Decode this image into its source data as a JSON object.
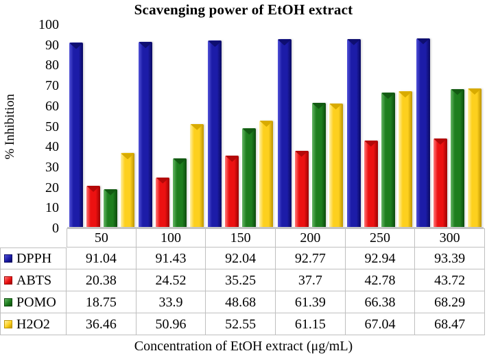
{
  "chart_data": {
    "type": "bar",
    "title": "Scavenging power of EtOH extract",
    "xlabel": "Concentration of EtOH extract (μg/mL)",
    "ylabel": "% Inhibition",
    "ylim": [
      0,
      100
    ],
    "yticks": [
      0,
      10,
      20,
      30,
      40,
      50,
      60,
      70,
      80,
      90,
      100
    ],
    "grid": false,
    "legend_position": "table-left",
    "categories": [
      "50",
      "100",
      "150",
      "200",
      "250",
      "300"
    ],
    "series": [
      {
        "name": "DPPH",
        "values": [
          91.04,
          91.43,
          92.04,
          92.77,
          92.94,
          93.39
        ],
        "palette": {
          "fill": "#1c1ca8",
          "highlight": "#5252d8",
          "shade": "#0a0a62",
          "cap": "#0e0e70"
        }
      },
      {
        "name": "ABTS",
        "values": [
          20.38,
          24.52,
          35.25,
          37.7,
          42.78,
          43.72
        ],
        "palette": {
          "fill": "#ec1111",
          "highlight": "#ff7a7a",
          "shade": "#9c0202",
          "cap": "#b40808"
        }
      },
      {
        "name": "POMO",
        "values": [
          18.75,
          33.9,
          48.68,
          61.39,
          66.38,
          68.29
        ],
        "palette": {
          "fill": "#1e7e1e",
          "highlight": "#66b666",
          "shade": "#0c4a0c",
          "cap": "#125a12"
        }
      },
      {
        "name": "H2O2",
        "values": [
          36.46,
          50.96,
          52.55,
          61.15,
          67.04,
          68.47
        ],
        "palette": {
          "fill": "#fdd01e",
          "highlight": "#fff0a6",
          "shade": "#bd9400",
          "cap": "#d8ab00"
        }
      }
    ]
  }
}
